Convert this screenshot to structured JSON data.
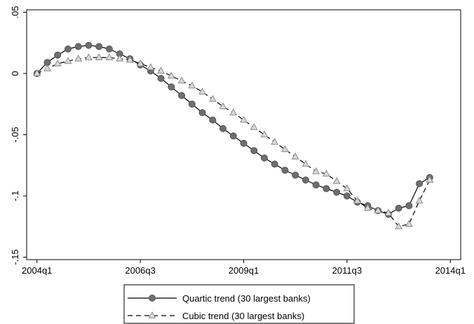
{
  "chart_data": {
    "type": "line",
    "x": [
      "2004q1",
      "2004q2",
      "2004q3",
      "2004q4",
      "2005q1",
      "2005q2",
      "2005q3",
      "2005q4",
      "2006q1",
      "2006q2",
      "2006q3",
      "2006q4",
      "2007q1",
      "2007q2",
      "2007q3",
      "2007q4",
      "2008q1",
      "2008q2",
      "2008q3",
      "2008q4",
      "2009q1",
      "2009q2",
      "2009q3",
      "2009q4",
      "2010q1",
      "2010q2",
      "2010q3",
      "2010q4",
      "2011q1",
      "2011q2",
      "2011q3",
      "2011q4",
      "2012q1",
      "2012q2",
      "2012q3",
      "2012q4",
      "2013q1",
      "2013q2",
      "2013q3"
    ],
    "series": [
      {
        "name": "Quartic trend (30 largest banks)",
        "color": "#6e6e6e",
        "dash": false,
        "marker": "circle",
        "values": [
          0,
          0.009,
          0.015,
          0.02,
          0.022,
          0.023,
          0.022,
          0.02,
          0.016,
          0.012,
          0.007,
          0.002,
          -0.004,
          -0.011,
          -0.018,
          -0.025,
          -0.032,
          -0.038,
          -0.045,
          -0.051,
          -0.057,
          -0.063,
          -0.069,
          -0.074,
          -0.079,
          -0.083,
          -0.087,
          -0.091,
          -0.094,
          -0.097,
          -0.1,
          -0.105,
          -0.108,
          -0.112,
          -0.115,
          -0.11,
          -0.108,
          -0.09,
          -0.085
        ]
      },
      {
        "name": "Cubic trend (30 largest banks)",
        "color": "#d9d9d9",
        "dash": true,
        "marker": "triangle",
        "values": [
          0,
          0.004,
          0.008,
          0.01,
          0.012,
          0.013,
          0.013,
          0.013,
          0.012,
          0.011,
          0.008,
          0.005,
          0.002,
          -0.002,
          -0.006,
          -0.01,
          -0.015,
          -0.021,
          -0.027,
          -0.032,
          -0.038,
          -0.044,
          -0.05,
          -0.056,
          -0.062,
          -0.068,
          -0.074,
          -0.08,
          -0.082,
          -0.088,
          -0.094,
          -0.104,
          -0.11,
          -0.112,
          -0.114,
          -0.125,
          -0.123,
          -0.104,
          -0.087
        ]
      }
    ],
    "xlim": [
      "2003q4",
      "2014q2"
    ],
    "xticks": [
      "2004q1",
      "2006q3",
      "2009q1",
      "2011q3",
      "2014q1"
    ],
    "ylim": [
      -0.152,
      0.052
    ],
    "yticks": [
      {
        "value": 0.05,
        "label": ".05"
      },
      0,
      {
        "value": -0.05,
        "label": "-.05"
      },
      {
        "value": -0.1,
        "label": "-.1"
      },
      {
        "value": -0.15,
        "label": "-.15"
      }
    ],
    "legend": "bottom"
  }
}
